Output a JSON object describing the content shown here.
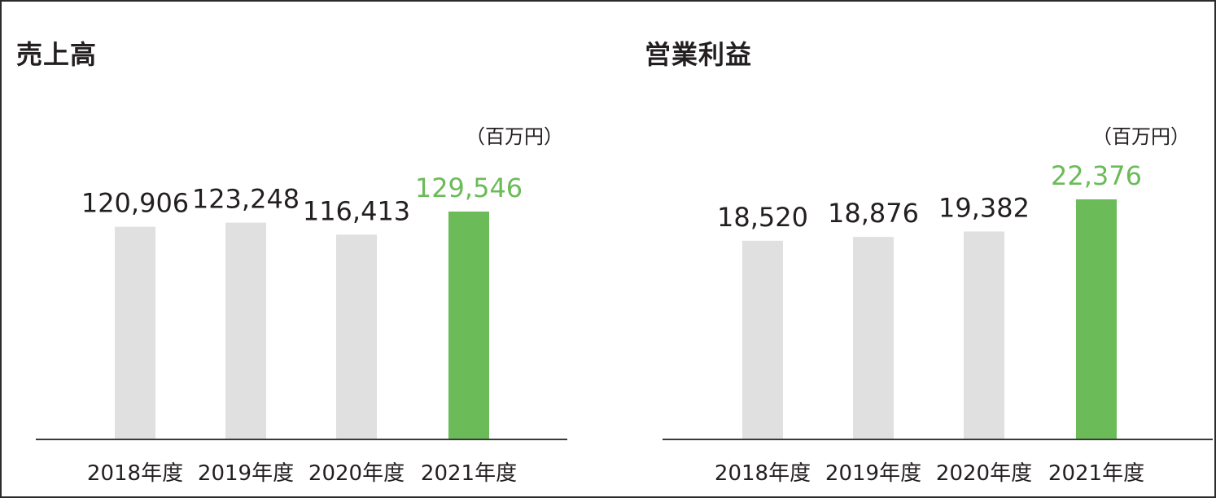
{
  "chart_data": [
    {
      "type": "bar",
      "title": "売上高",
      "unit": "（百万円）",
      "categories": [
        "2018年度",
        "2019年度",
        "2020年度",
        "2021年度"
      ],
      "values": [
        120906,
        123248,
        116413,
        129546
      ],
      "value_labels": [
        "120,906",
        "123,248",
        "116,413",
        "129,546"
      ],
      "highlight_index": 3,
      "ylim": [
        0,
        129546
      ],
      "grid": false,
      "legend": "none"
    },
    {
      "type": "bar",
      "title": "営業利益",
      "unit": "（百万円）",
      "categories": [
        "2018年度",
        "2019年度",
        "2020年度",
        "2021年度"
      ],
      "values": [
        18520,
        18876,
        19382,
        22376
      ],
      "value_labels": [
        "18,520",
        "18,876",
        "19,382",
        "22,376"
      ],
      "highlight_index": 3,
      "ylim": [
        0,
        22376
      ],
      "grid": false,
      "legend": "none"
    }
  ],
  "colors": {
    "bar": "#e0e0e0",
    "highlight_bar": "#6bbb59",
    "highlight_text": "#6bbb59",
    "text": "#231f20",
    "axis": "#3a3a3a"
  }
}
